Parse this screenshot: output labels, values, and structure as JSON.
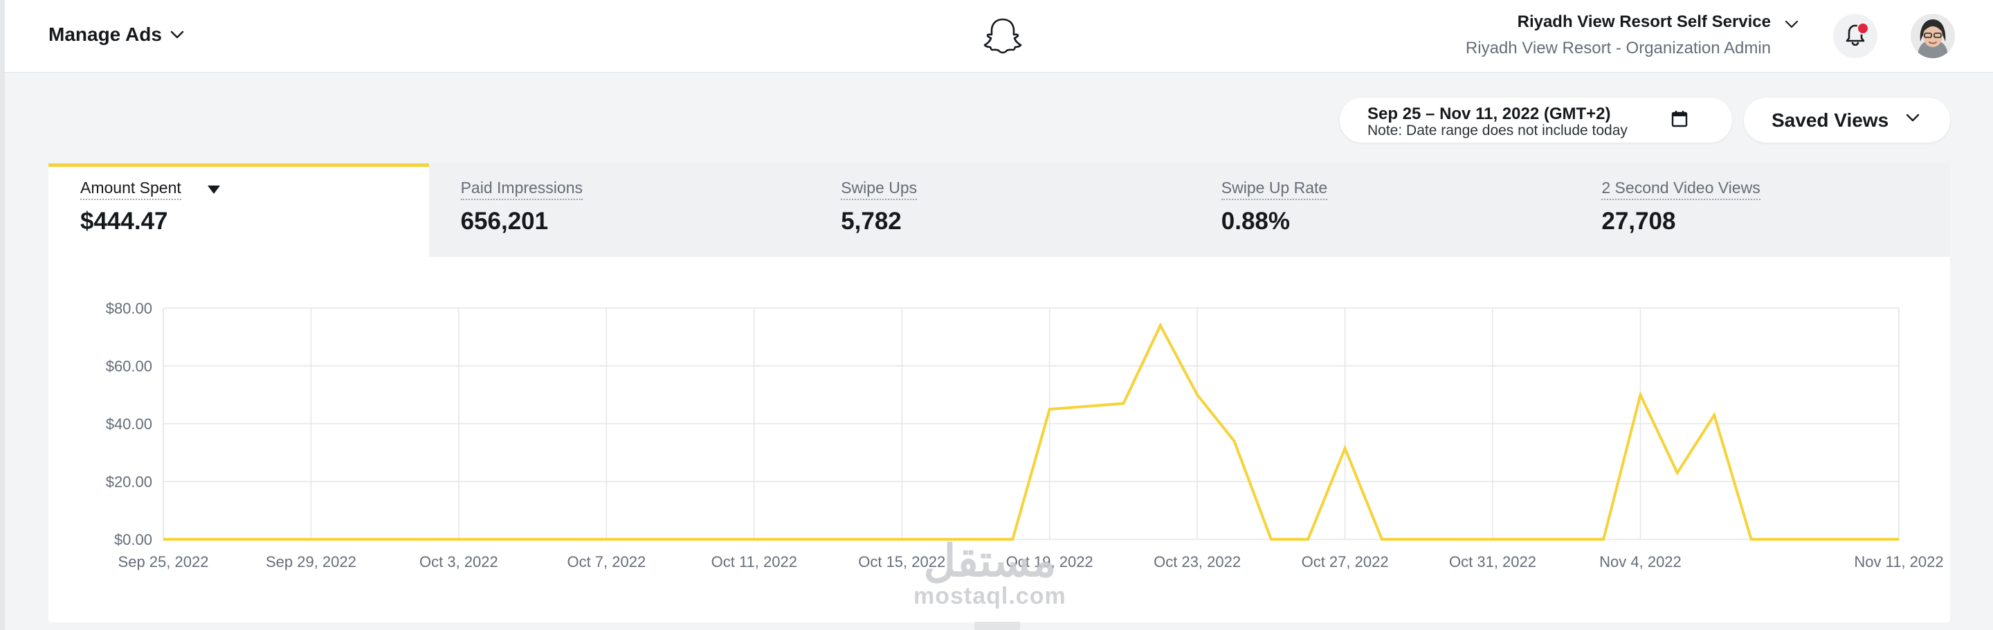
{
  "header": {
    "manage_ads_label": "Manage Ads",
    "account_name": "Riyadh View Resort Self Service",
    "account_org": "Riyadh View Resort - Organization Admin",
    "brand_logo": "snapchat-ghost-icon",
    "notification_indicator_color": "#e0243d"
  },
  "controls": {
    "date_range": "Sep 25 – Nov 11, 2022 (GMT+2)",
    "date_note": "Note: Date range does not include today",
    "saved_views_label": "Saved Views"
  },
  "metrics": [
    {
      "label": "Amount Spent",
      "value": "$444.47",
      "active": true
    },
    {
      "label": "Paid Impressions",
      "value": "656,201",
      "active": false
    },
    {
      "label": "Swipe Ups",
      "value": "5,782",
      "active": false
    },
    {
      "label": "Swipe Up Rate",
      "value": "0.88%",
      "active": false
    },
    {
      "label": "2 Second Video Views",
      "value": "27,708",
      "active": false
    }
  ],
  "chart_data": {
    "type": "line",
    "title": "",
    "xlabel": "",
    "ylabel": "",
    "ylim": [
      0,
      80
    ],
    "y_ticks": [
      "$0.00",
      "$20.00",
      "$40.00",
      "$60.00",
      "$80.00"
    ],
    "x_tick_labels": [
      "Sep 25, 2022",
      "Sep 29, 2022",
      "Oct 3, 2022",
      "Oct 7, 2022",
      "Oct 11, 2022",
      "Oct 15, 2022",
      "Oct 19, 2022",
      "Oct 23, 2022",
      "Oct 27, 2022",
      "Oct 31, 2022",
      "Nov 4, 2022",
      "Nov 11, 2022"
    ],
    "grid": true,
    "line_color": "#f6d33d",
    "series": [
      {
        "x": [
          "2022-09-25",
          "2022-09-26",
          "2022-09-27",
          "2022-09-28",
          "2022-09-29",
          "2022-09-30",
          "2022-10-01",
          "2022-10-02",
          "2022-10-03",
          "2022-10-04",
          "2022-10-05",
          "2022-10-06",
          "2022-10-07",
          "2022-10-08",
          "2022-10-09",
          "2022-10-10",
          "2022-10-11",
          "2022-10-12",
          "2022-10-13",
          "2022-10-14",
          "2022-10-15",
          "2022-10-16",
          "2022-10-17",
          "2022-10-18",
          "2022-10-19",
          "2022-10-20",
          "2022-10-21",
          "2022-10-22",
          "2022-10-23",
          "2022-10-24",
          "2022-10-25",
          "2022-10-26",
          "2022-10-27",
          "2022-10-28",
          "2022-10-29",
          "2022-10-30",
          "2022-10-31",
          "2022-11-01",
          "2022-11-02",
          "2022-11-03",
          "2022-11-04",
          "2022-11-05",
          "2022-11-06",
          "2022-11-07",
          "2022-11-08",
          "2022-11-09",
          "2022-11-10",
          "2022-11-11"
        ],
        "values": [
          0,
          0,
          0,
          0,
          0,
          0,
          0,
          0,
          0,
          0,
          0,
          0,
          0,
          0,
          0,
          0,
          0,
          0,
          0,
          0,
          0,
          0,
          0,
          0,
          45,
          46,
          47,
          74,
          50,
          34,
          0,
          0,
          31.5,
          0,
          0,
          0,
          0,
          0,
          0,
          0,
          50,
          23,
          43,
          0,
          0,
          0,
          0,
          0
        ]
      }
    ]
  },
  "watermark": {
    "arabic": "مستقل",
    "latin": "mostaql.com"
  }
}
